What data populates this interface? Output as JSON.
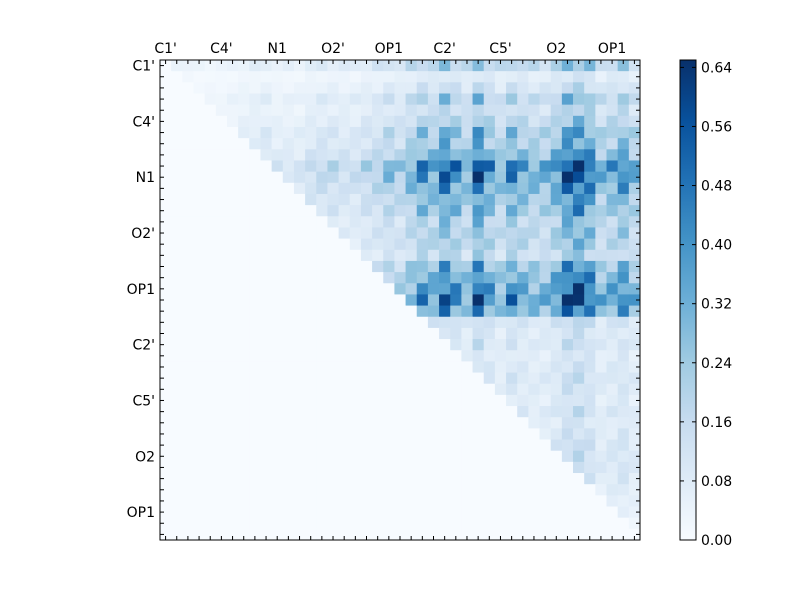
{
  "chart_data": {
    "type": "heatmap",
    "title": "",
    "xlabel": "",
    "ylabel": "",
    "n": 43,
    "x_tick_labels": [
      "C1'",
      "C4'",
      "N1",
      "O2'",
      "OP1",
      "C2'",
      "C5'",
      "O2",
      "OP1"
    ],
    "y_tick_labels": [
      "C1'",
      "C4'",
      "N1",
      "O2'",
      "OP1",
      "C2'",
      "C5'",
      "O2",
      "OP1"
    ],
    "x_tick_positions": [
      0,
      5,
      10,
      15,
      20,
      25,
      30,
      35,
      40
    ],
    "y_tick_positions": [
      0,
      5,
      10,
      15,
      20,
      25,
      30,
      35,
      40
    ],
    "colorbar": {
      "min": 0.0,
      "max": 0.65,
      "colormap": "Blues",
      "tick_labels": [
        "0.00",
        "0.08",
        "0.16",
        "0.24",
        "0.32",
        "0.40",
        "0.48",
        "0.56",
        "0.64"
      ],
      "tick_values": [
        0.0,
        0.08,
        0.16,
        0.24,
        0.32,
        0.4,
        0.48,
        0.56,
        0.64
      ]
    },
    "upper_triangle_only": true,
    "row_weights": [
      0.3,
      0.12,
      0.18,
      0.3,
      0.22,
      0.28,
      0.38,
      0.36,
      0.45,
      0.65,
      0.58,
      0.5,
      0.42,
      0.4,
      0.3,
      0.32,
      0.3,
      0.24,
      0.42,
      0.48,
      0.55,
      0.62,
      0.5,
      0.18,
      0.14,
      0.16,
      0.12,
      0.14,
      0.16,
      0.14,
      0.12,
      0.16,
      0.12,
      0.14,
      0.16,
      0.16,
      0.16,
      0.14,
      0.12,
      0.1,
      0.08,
      0.06,
      0.04
    ],
    "col_weights": [
      0.04,
      0.1,
      0.08,
      0.06,
      0.06,
      0.06,
      0.08,
      0.1,
      0.12,
      0.14,
      0.1,
      0.1,
      0.1,
      0.14,
      0.16,
      0.16,
      0.14,
      0.14,
      0.18,
      0.2,
      0.26,
      0.22,
      0.3,
      0.4,
      0.34,
      0.5,
      0.4,
      0.3,
      0.55,
      0.38,
      0.28,
      0.42,
      0.34,
      0.3,
      0.3,
      0.38,
      0.55,
      0.58,
      0.48,
      0.3,
      0.34,
      0.42,
      0.3
    ]
  }
}
